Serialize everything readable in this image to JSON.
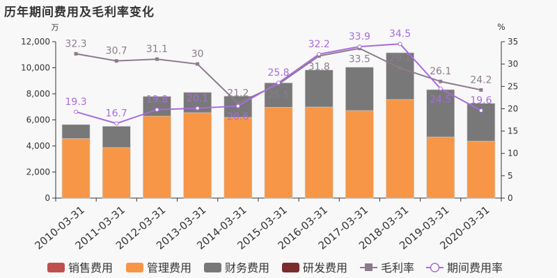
{
  "title": "历年期间费用及毛利率变化",
  "chart_data": {
    "type": "bar",
    "title": "历年期间费用及毛利率变化",
    "left_unit": "万",
    "right_unit": "%",
    "ylim_left": [
      0,
      12000
    ],
    "yticks_left": [
      "0",
      "2,000",
      "4,000",
      "6,000",
      "8,000",
      "10,000",
      "12,000"
    ],
    "ylim_right": [
      0,
      35
    ],
    "yticks_right": [
      "0",
      "5",
      "10",
      "15",
      "20",
      "25",
      "30",
      "35"
    ],
    "categories": [
      "2010-03-31",
      "2011-03-31",
      "2012-03-31",
      "2013-03-31",
      "2014-03-31",
      "2015-03-31",
      "2016-03-31",
      "2017-03-31",
      "2018-03-31",
      "2019-03-31",
      "2020-03-31"
    ],
    "stacked_series": [
      {
        "name": "销售费用",
        "color": "#c0504d",
        "values": [
          0,
          0,
          0,
          0,
          0,
          0,
          0,
          0,
          0,
          0,
          0
        ]
      },
      {
        "name": "管理费用",
        "color": "#f79646",
        "values": [
          4570,
          3880,
          6290,
          6560,
          6190,
          6970,
          6990,
          6720,
          7570,
          4690,
          4370
        ]
      },
      {
        "name": "财务费用",
        "color": "#787878",
        "values": [
          1070,
          1630,
          1510,
          1550,
          1630,
          1870,
          2840,
          3320,
          3580,
          3630,
          2900
        ]
      },
      {
        "name": "研发费用",
        "color": "#7b2c2c",
        "values": [
          0,
          0,
          0,
          0,
          0,
          0,
          0,
          0,
          0,
          0,
          0
        ]
      }
    ],
    "line_series": [
      {
        "name": "毛利率",
        "color": "#8c7b8c",
        "marker": "square",
        "values": [
          32.3,
          30.7,
          31.1,
          30,
          21.2,
          25.5,
          31.8,
          33.5,
          29.1,
          26.1,
          24.2
        ]
      },
      {
        "name": "期间费用率",
        "color": "#a86be0",
        "marker": "circle",
        "values": [
          19.3,
          16.7,
          19.8,
          20.1,
          20.6,
          25.8,
          32.2,
          33.9,
          34.5,
          24.5,
          19.6
        ]
      }
    ],
    "grid": false,
    "legend": "bottom"
  }
}
